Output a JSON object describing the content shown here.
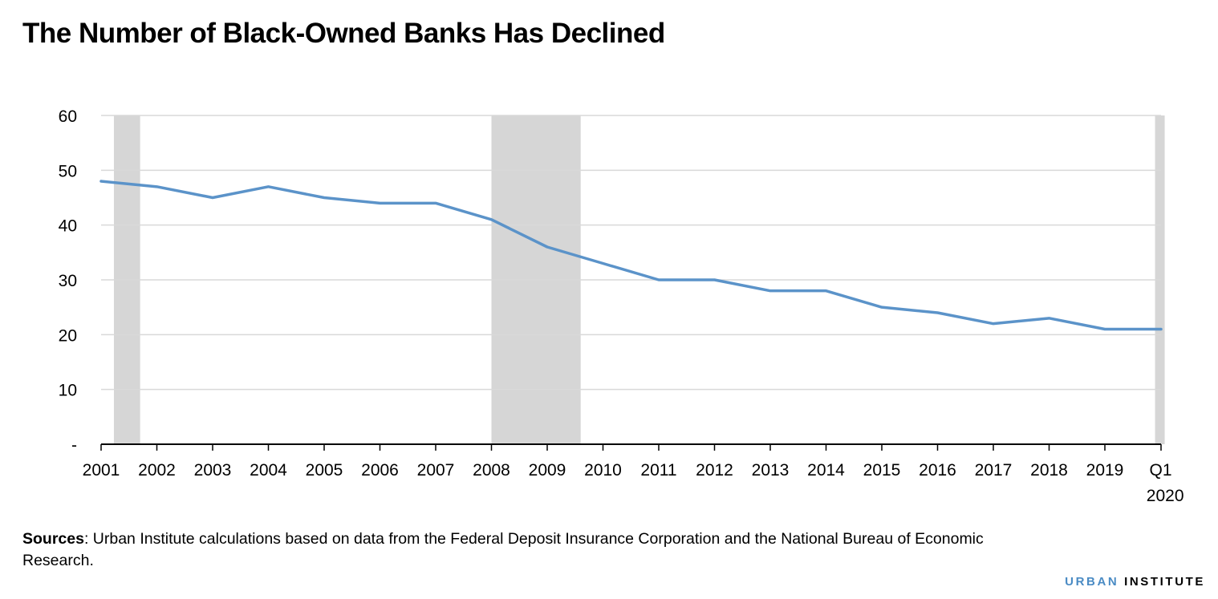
{
  "chart_data": {
    "type": "line",
    "title": "The Number of Black-Owned Banks Has Declined",
    "xlabel": "",
    "ylabel": "",
    "categories": [
      "2001",
      "2002",
      "2003",
      "2004",
      "2005",
      "2006",
      "2007",
      "2008",
      "2009",
      "2010",
      "2011",
      "2012",
      "2013",
      "2014",
      "2015",
      "2016",
      "2017",
      "2018",
      "2019",
      "Q1\n2020"
    ],
    "category_lines": [
      [
        "2001"
      ],
      [
        "2002"
      ],
      [
        "2003"
      ],
      [
        "2004"
      ],
      [
        "2005"
      ],
      [
        "2006"
      ],
      [
        "2007"
      ],
      [
        "2008"
      ],
      [
        "2009"
      ],
      [
        "2010"
      ],
      [
        "2011"
      ],
      [
        "2012"
      ],
      [
        "2013"
      ],
      [
        "2014"
      ],
      [
        "2015"
      ],
      [
        "2016"
      ],
      [
        "2017"
      ],
      [
        "2018"
      ],
      [
        "2019"
      ],
      [
        "Q1",
        "2020"
      ]
    ],
    "series": [
      {
        "values": [
          48,
          47,
          45,
          47,
          45,
          44,
          44,
          41,
          36,
          33,
          30,
          30,
          28,
          28,
          25,
          24,
          22,
          23,
          21,
          21
        ],
        "color": "#5b93c9"
      }
    ],
    "recession_shading": {
      "color": "#d6d6d6",
      "periods": [
        [
          0.23,
          0.7
        ],
        [
          7.0,
          8.6
        ],
        [
          18.9,
          19.0
        ]
      ]
    },
    "ylim": [
      0,
      60
    ],
    "yticks": [
      0,
      10,
      20,
      30,
      40,
      50,
      60
    ],
    "ytick_labels": [
      "-",
      "10",
      "20",
      "30",
      "40",
      "50",
      "60"
    ],
    "grid": true,
    "legend": "none"
  },
  "source": {
    "label": "Sources",
    "text": ": Urban Institute calculations based on data from the Federal Deposit Insurance Corporation and the National Bureau of Economic Research."
  },
  "brand": {
    "part1": "URBAN",
    "part2": "INSTITUTE"
  }
}
